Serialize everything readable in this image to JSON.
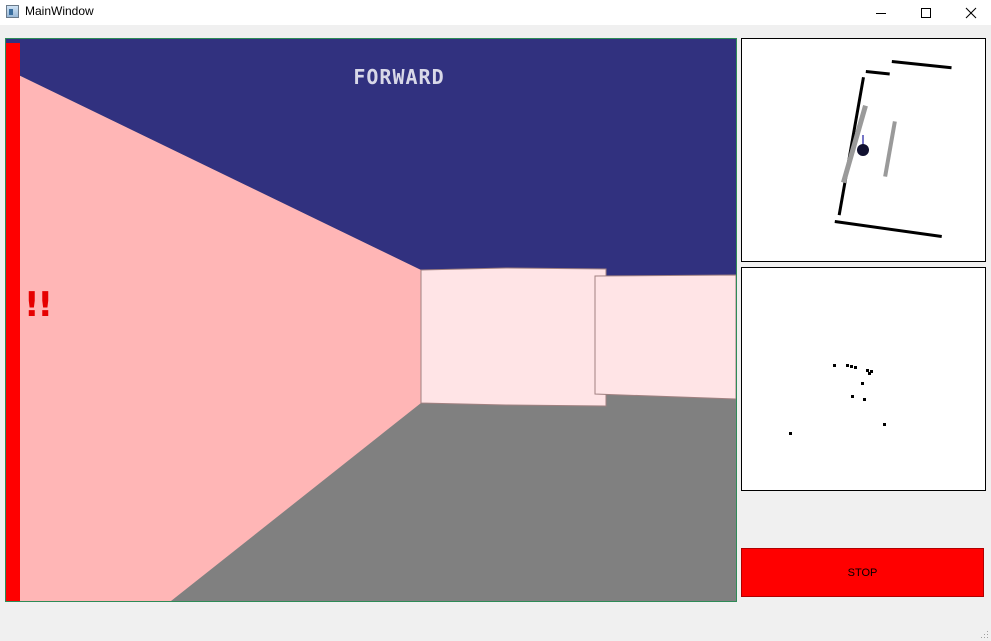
{
  "window": {
    "title": "MainWindow",
    "icons": {
      "app": "app-window-icon",
      "minimize": "minimize-icon",
      "maximize": "maximize-icon",
      "close": "close-icon"
    }
  },
  "view": {
    "direction_label": "FORWARD",
    "warning_label": "!!",
    "colors": {
      "ceiling": "#31317f",
      "floor": "#808080",
      "left_wall": "#ffb6b6",
      "front_wall": "#ffe4e6",
      "proximity_bar": "#ff0000",
      "warning": "#e60000"
    }
  },
  "controls": {
    "stop_label": "STOP",
    "stop_color": "#ff0000"
  }
}
